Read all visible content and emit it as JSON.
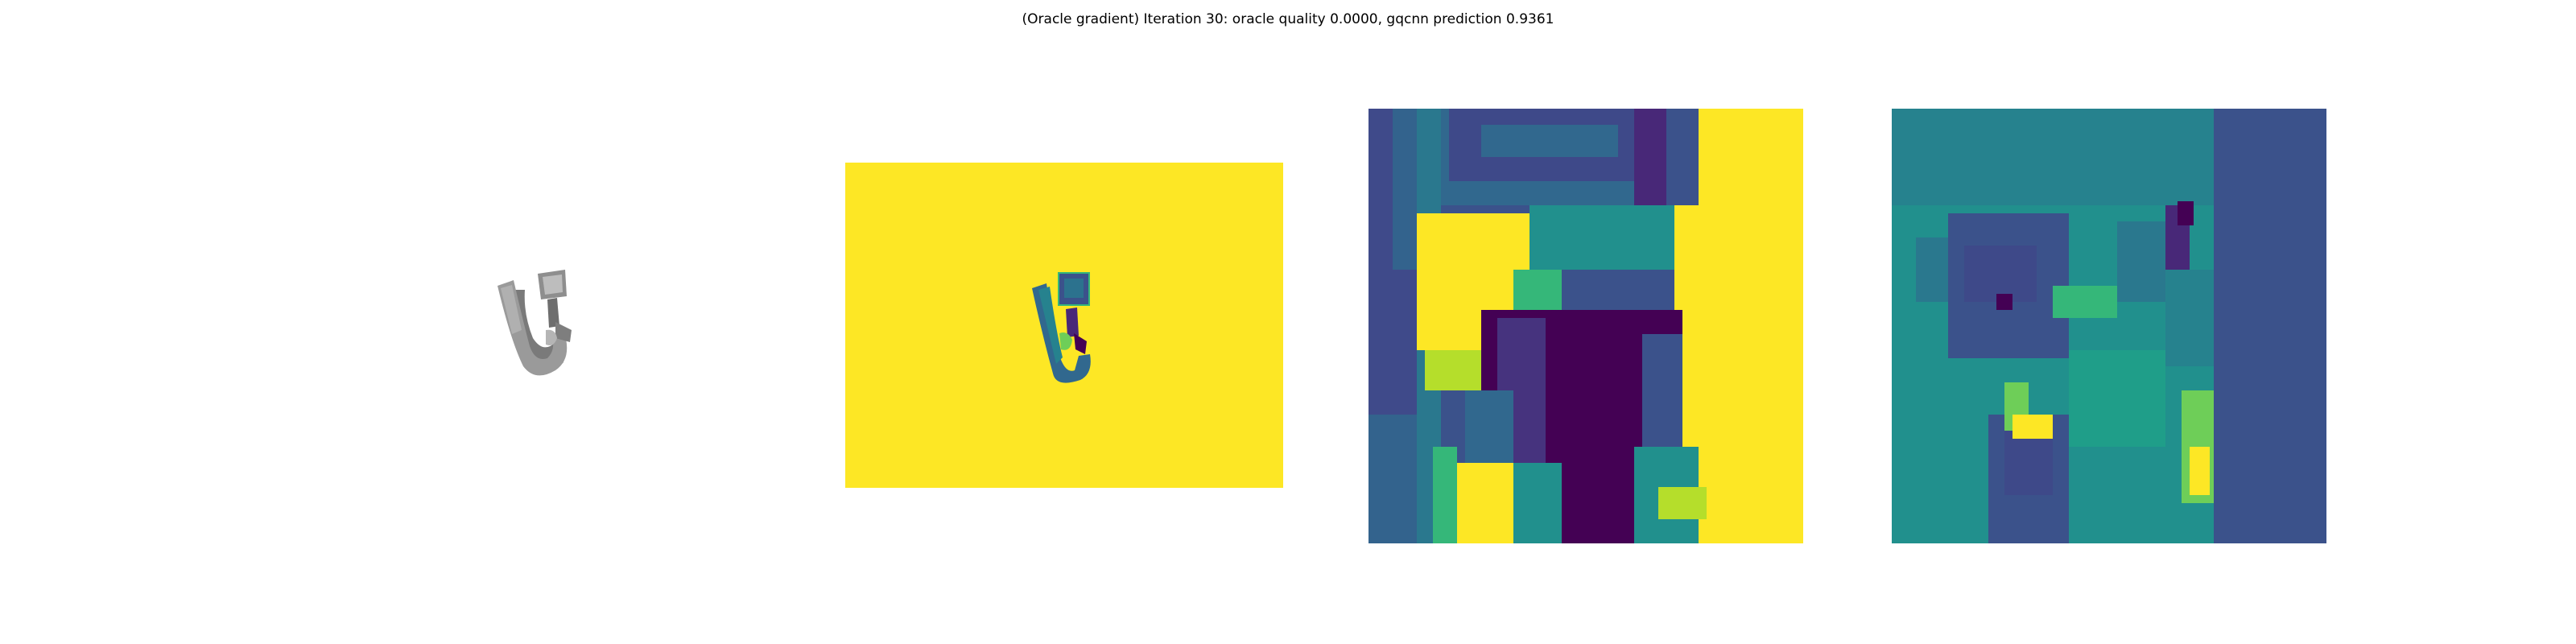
{
  "figure": {
    "title": "(Oracle gradient) Iteration 30: oracle quality 0.0000, gqcnn prediction 0.9361"
  },
  "panels": [
    {
      "id": "render",
      "content": "grayscale 3D object render"
    },
    {
      "id": "depth",
      "content": "full depth image, viridis colormap"
    },
    {
      "id": "crop-depth",
      "content": "cropped depth patch, viridis colormap"
    },
    {
      "id": "gradient",
      "content": "gradient patch, viridis colormap"
    }
  ],
  "colors": {
    "background": "#ffffff",
    "viridis_yellow": "#fde725",
    "viridis_teal": "#21908d",
    "viridis_blue": "#3b528b",
    "viridis_purple": "#440154",
    "object_gray": "#8c8c8c"
  }
}
